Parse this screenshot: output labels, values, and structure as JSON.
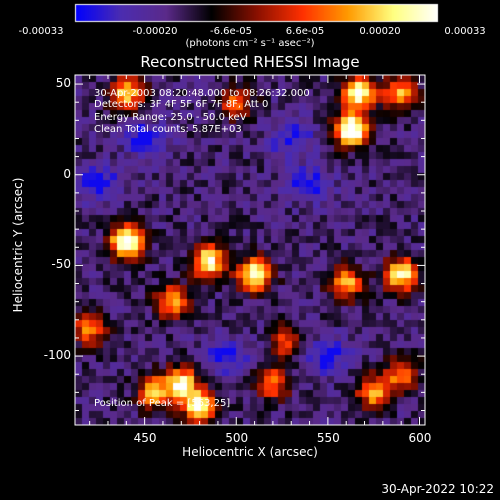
{
  "colorbar": {
    "tick_labels": [
      "-0.00033",
      "-0.00020",
      "-6.6e-05",
      "6.6e-05",
      "0.00020",
      "0.00033"
    ],
    "units": "(photons cm⁻² s⁻¹ asec⁻²)",
    "colors": [
      "#0000ff",
      "#4b2cb0",
      "#5a2a8a",
      "#000000",
      "#8a1000",
      "#ff3000",
      "#ff9a00",
      "#ffff80",
      "#ffffff"
    ]
  },
  "chart_data": {
    "type": "heatmap",
    "title": "Reconstructed RHESSI Image",
    "xlabel": "Heliocentric X (arcsec)",
    "ylabel": "Heliocentric Y (arcsec)",
    "xlim": [
      412,
      603
    ],
    "ylim": [
      -138,
      55
    ],
    "x_ticks": [
      450,
      500,
      550,
      600
    ],
    "y_ticks": [
      50,
      0,
      -50,
      -100
    ],
    "hot_spots": [
      {
        "x": 563,
        "y": 25,
        "value": 1.0
      },
      {
        "x": 567,
        "y": 45,
        "value": 0.85
      },
      {
        "x": 440,
        "y": -37,
        "value": 0.95
      },
      {
        "x": 485,
        "y": -48,
        "value": 0.8
      },
      {
        "x": 510,
        "y": -55,
        "value": 0.85
      },
      {
        "x": 465,
        "y": -70,
        "value": 0.6
      },
      {
        "x": 590,
        "y": -55,
        "value": 0.8
      },
      {
        "x": 560,
        "y": -60,
        "value": 0.6
      },
      {
        "x": 440,
        "y": 45,
        "value": 0.7
      },
      {
        "x": 500,
        "y": 40,
        "value": 0.45
      },
      {
        "x": 590,
        "y": 45,
        "value": 0.6
      },
      {
        "x": 470,
        "y": -115,
        "value": 0.75
      },
      {
        "x": 455,
        "y": -120,
        "value": 0.6
      },
      {
        "x": 480,
        "y": -128,
        "value": 0.8
      },
      {
        "x": 575,
        "y": -120,
        "value": 0.6
      },
      {
        "x": 590,
        "y": -110,
        "value": 0.5
      },
      {
        "x": 420,
        "y": -85,
        "value": 0.5
      },
      {
        "x": 527,
        "y": -92,
        "value": 0.4
      },
      {
        "x": 520,
        "y": -115,
        "value": 0.5
      }
    ],
    "cold_spots": [
      {
        "x": 450,
        "y": 20
      },
      {
        "x": 530,
        "y": 20
      },
      {
        "x": 540,
        "y": -5
      },
      {
        "x": 495,
        "y": -100
      },
      {
        "x": 550,
        "y": -100
      },
      {
        "x": 425,
        "y": -5
      }
    ]
  },
  "annotations": {
    "time_range": "30-Apr-2003 08:20:48.000 to 08:26:32.000",
    "detectors": "Detectors: 3F 4F 5F 6F 7F 8F, Att 0",
    "energy": "Energy Range: 25.0 - 50.0 keV",
    "method": "Clean     Total counts: 5.87E+03",
    "peak": "Position of Peak = [563,25]"
  },
  "timestamp": "30-Apr-2022 10:22"
}
